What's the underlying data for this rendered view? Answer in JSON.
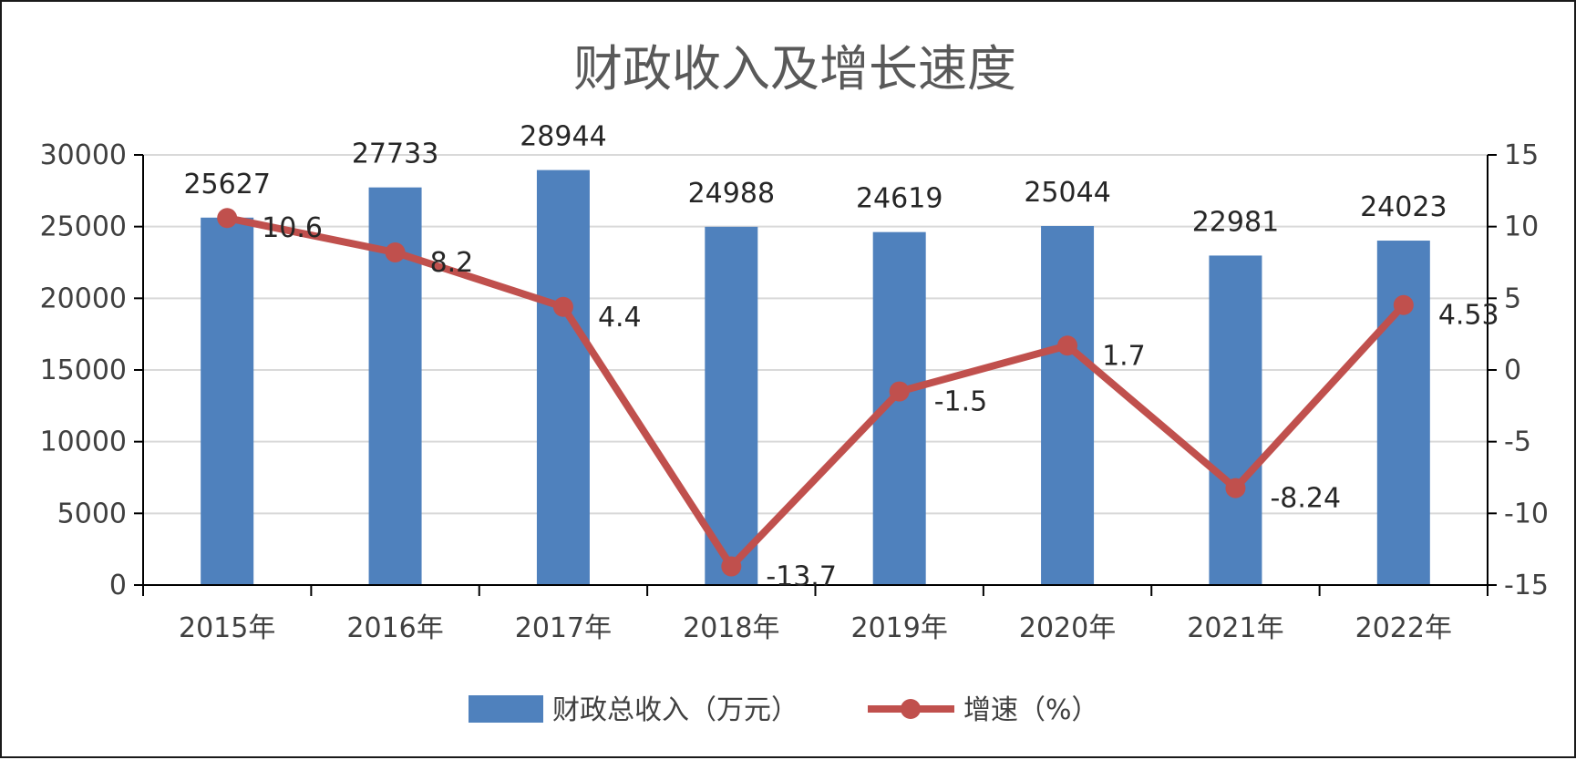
{
  "chart_data": {
    "type": "bar",
    "title": "财政收入及增长速度",
    "categories": [
      "2015年",
      "2016年",
      "2017年",
      "2018年",
      "2019年",
      "2020年",
      "2021年",
      "2022年"
    ],
    "series": [
      {
        "name": "财政总收入（万元）",
        "type": "bar",
        "axis": "left",
        "color": "#4f81bd",
        "values": [
          25627,
          27733,
          28944,
          24988,
          24619,
          25044,
          22981,
          24023
        ],
        "labels": [
          "25627",
          "27733",
          "28944",
          "24988",
          "24619",
          "25044",
          "22981",
          "24023"
        ]
      },
      {
        "name": "增速（%）",
        "type": "line",
        "axis": "right",
        "color": "#c0504d",
        "values": [
          10.6,
          8.2,
          4.4,
          -13.7,
          -1.5,
          1.7,
          -8.24,
          4.53
        ],
        "labels": [
          "10.6",
          "8.2",
          "4.4",
          "-13.7",
          "-1.5",
          "1.7",
          "-8.24",
          "4.53"
        ]
      }
    ],
    "y_left": {
      "lim": [
        0,
        30000
      ],
      "ticks": [
        "0",
        "5000",
        "10000",
        "15000",
        "20000",
        "25000",
        "30000"
      ]
    },
    "y_right": {
      "lim": [
        -15,
        15
      ],
      "ticks": [
        "-15",
        "-10",
        "-5",
        "0",
        "5",
        "10",
        "15"
      ]
    },
    "grid": true,
    "legend_position": "bottom"
  }
}
